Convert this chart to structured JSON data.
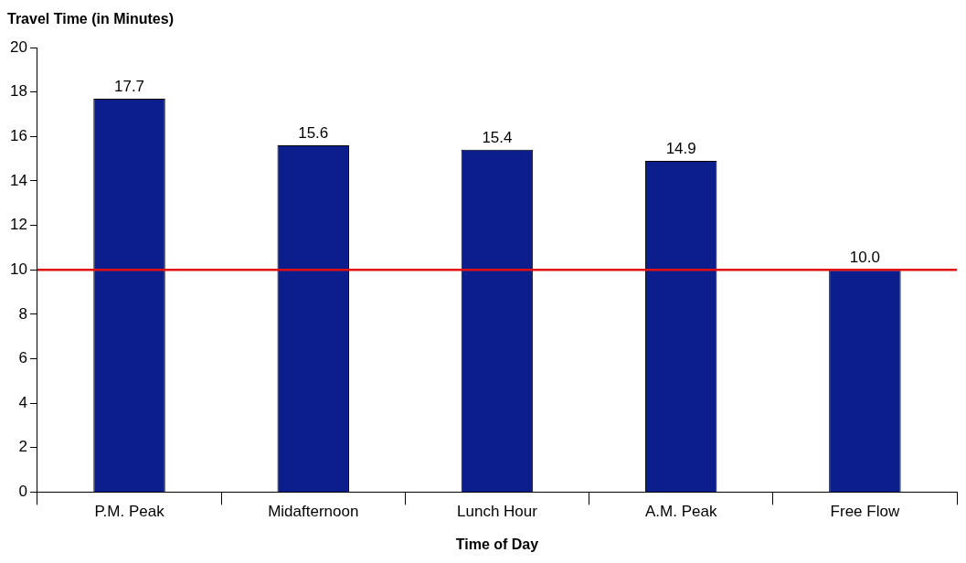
{
  "chart_data": {
    "type": "bar",
    "xlabel": "Time of Day",
    "ylabel": "Travel Time (in Minutes)",
    "categories": [
      "P.M. Peak",
      "Midafternoon",
      "Lunch Hour",
      "A.M. Peak",
      "Free Flow"
    ],
    "values": [
      17.7,
      15.6,
      15.4,
      14.9,
      10.0
    ],
    "color": "#0b1e8c",
    "value_labels": [
      "17.7",
      "15.6",
      "15.4",
      "14.9",
      "10.0"
    ],
    "ylim": [
      0,
      20
    ],
    "yticks": [
      0,
      2,
      4,
      6,
      8,
      10,
      12,
      14,
      16,
      18,
      20
    ],
    "grid": false,
    "legend": false,
    "ref_lines": [
      {
        "axis": "y",
        "value": 10,
        "color": "#e01010"
      }
    ]
  }
}
